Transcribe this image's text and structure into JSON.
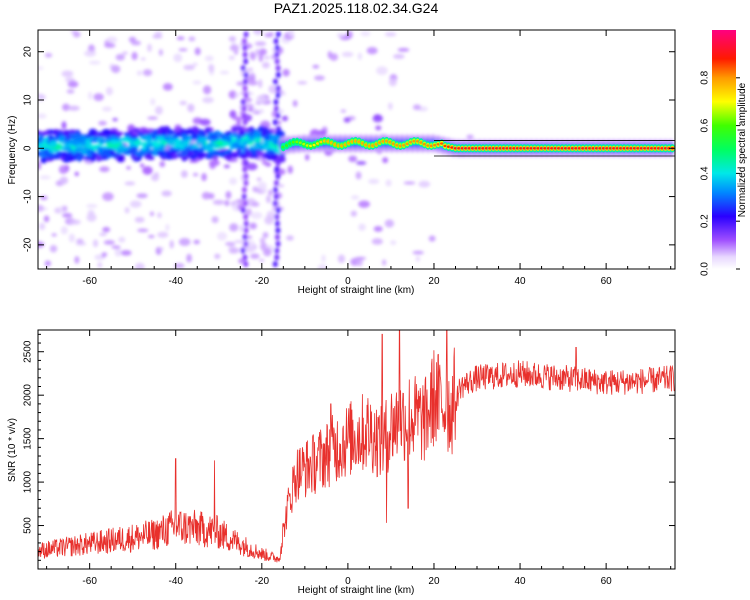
{
  "figure_title": "PAZ1.2025.118.02.34.G24",
  "colors": {
    "line": "#e8302c",
    "frame": "#000000",
    "ridge_center": "#e8123c"
  },
  "chart_data": [
    {
      "type": "heatmap",
      "title": "PAZ1.2025.118.02.34.G24",
      "xlabel": "Height of straight line (km)",
      "ylabel": "Frequency (Hz)",
      "xlim": [
        -72,
        76
      ],
      "ylim": [
        -25,
        24.5
      ],
      "xticks": [
        -60,
        -40,
        -20,
        0,
        20,
        40,
        60
      ],
      "yticks": [
        -20,
        -10,
        0,
        10,
        20
      ],
      "colorbar": {
        "label": "Normalized spectral amplitude",
        "range": [
          0,
          1
        ],
        "ticks": [
          "0.0",
          "0.2",
          "0.4",
          "0.6",
          "0.8"
        ],
        "colormap": "rainbow (white-violet-blue-cyan-green-yellow-red-magenta)"
      },
      "ridge": [
        {
          "x": -72,
          "f": 0.5
        },
        {
          "x": -60,
          "f": 0.5
        },
        {
          "x": -50,
          "f": 0.8
        },
        {
          "x": -40,
          "f": 1.0
        },
        {
          "x": -30,
          "f": 1.0
        },
        {
          "x": -20,
          "f": 1.5
        },
        {
          "x": -17,
          "f": 0.5
        },
        {
          "x": -10,
          "f": 1.0
        },
        {
          "x": 0,
          "f": 1.0
        },
        {
          "x": 10,
          "f": 1.0
        },
        {
          "x": 20,
          "f": 1.0
        },
        {
          "x": 25,
          "f": 0.0
        },
        {
          "x": 40,
          "f": 0.0
        },
        {
          "x": 60,
          "f": 0.0
        },
        {
          "x": 76,
          "f": 0.0
        }
      ],
      "ridge_peak_amplitude_by_x": [
        {
          "x": -72,
          "amp": 0.35
        },
        {
          "x": -18,
          "amp": 0.45
        },
        {
          "x": -16,
          "amp": 0.6
        },
        {
          "x": -5,
          "amp": 0.85
        },
        {
          "x": 20,
          "amp": 0.9
        },
        {
          "x": 25,
          "amp": 1.0
        },
        {
          "x": 76,
          "amp": 1.0
        }
      ]
    },
    {
      "type": "line",
      "title": "",
      "xlabel": "Height of straight line (km)",
      "ylabel": "SNR (10 * v/v)",
      "xlim": [
        -72,
        76
      ],
      "ylim": [
        0,
        2750
      ],
      "xticks": [
        -60,
        -40,
        -20,
        0,
        20,
        40,
        60
      ],
      "yticks": [
        500,
        1000,
        1500,
        2000,
        2500
      ],
      "series": [
        {
          "name": "",
          "envelope_points": [
            {
              "x": -72,
              "y": 180
            },
            {
              "x": -65,
              "y": 220
            },
            {
              "x": -55,
              "y": 280
            },
            {
              "x": -45,
              "y": 340
            },
            {
              "x": -40,
              "y": 420
            },
            {
              "x": -35,
              "y": 400
            },
            {
              "x": -30,
              "y": 360
            },
            {
              "x": -25,
              "y": 250
            },
            {
              "x": -20,
              "y": 150
            },
            {
              "x": -16,
              "y": 100
            },
            {
              "x": -14,
              "y": 650
            },
            {
              "x": -12,
              "y": 1000
            },
            {
              "x": -8,
              "y": 1100
            },
            {
              "x": -5,
              "y": 1200
            },
            {
              "x": -2,
              "y": 1300
            },
            {
              "x": 2,
              "y": 1400
            },
            {
              "x": 5,
              "y": 1450
            },
            {
              "x": 8,
              "y": 1300
            },
            {
              "x": 10,
              "y": 1500
            },
            {
              "x": 14,
              "y": 1600
            },
            {
              "x": 18,
              "y": 1550
            },
            {
              "x": 20,
              "y": 1800
            },
            {
              "x": 24,
              "y": 1650
            },
            {
              "x": 26,
              "y": 2050
            },
            {
              "x": 30,
              "y": 2150
            },
            {
              "x": 40,
              "y": 2200
            },
            {
              "x": 50,
              "y": 2150
            },
            {
              "x": 60,
              "y": 2100
            },
            {
              "x": 70,
              "y": 2120
            },
            {
              "x": 76,
              "y": 2150
            }
          ],
          "notable_spikes": [
            {
              "x": -40,
              "y": 1270
            },
            {
              "x": -31,
              "y": 1250
            },
            {
              "x": -4,
              "y": 1900
            },
            {
              "x": 8,
              "y": 2700
            },
            {
              "x": 9,
              "y": 530
            },
            {
              "x": 12,
              "y": 2750
            },
            {
              "x": 14,
              "y": 700
            },
            {
              "x": 23,
              "y": 2750
            },
            {
              "x": 53,
              "y": 2550
            }
          ]
        }
      ]
    }
  ]
}
